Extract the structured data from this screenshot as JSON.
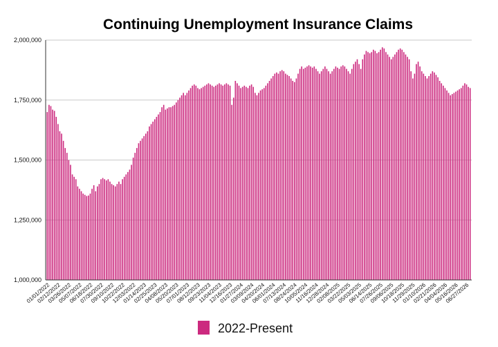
{
  "chart_data": {
    "type": "bar",
    "title": "Continuing Unemployment Insurance Claims",
    "legend": {
      "label": "2022-Present",
      "color": "#cc2a7f",
      "position": "bottom-center"
    },
    "bar_color": "#cc2a7f",
    "grid": true,
    "ylim": [
      1000000,
      2000000
    ],
    "yticks": [
      "1,000,000",
      "1,250,000",
      "1,500,000",
      "1,750,000",
      "2,000,000"
    ],
    "ytick_values": [
      1000000,
      1250000,
      1500000,
      1750000,
      2000000
    ],
    "xtick_labels": [
      "01/01/2022",
      "02/12/2022",
      "03/26/2022",
      "05/07/2022",
      "06/18/2022",
      "07/30/2022",
      "09/10/2022",
      "10/22/2022",
      "12/03/2022",
      "01/14/2023",
      "02/25/2023",
      "04/08/2023",
      "05/20/2023",
      "07/01/2023",
      "08/12/2023",
      "09/23/2023",
      "11/04/2023",
      "12/16/2023",
      "01/27/2024",
      "03/09/2024",
      "04/20/2024",
      "06/01/2024",
      "07/13/2024",
      "08/24/2024",
      "10/05/2024",
      "11/16/2024",
      "12/28/2024",
      "02/08/2025",
      "03/22/2025",
      "05/03/2025",
      "06/14/2025",
      "07/26/2025",
      "09/06/2025",
      "10/18/2025",
      "11/29/2025",
      "01/10/2026",
      "02/21/2026",
      "04/04/2026",
      "05/16/2026",
      "06/27/2026"
    ],
    "values": [
      1700000,
      1730000,
      1725000,
      1710000,
      1705000,
      1680000,
      1650000,
      1620000,
      1610000,
      1580000,
      1550000,
      1530000,
      1500000,
      1480000,
      1440000,
      1430000,
      1420000,
      1390000,
      1380000,
      1370000,
      1360000,
      1355000,
      1350000,
      1352000,
      1360000,
      1380000,
      1395000,
      1370000,
      1390000,
      1400000,
      1420000,
      1425000,
      1420000,
      1415000,
      1420000,
      1410000,
      1400000,
      1395000,
      1390000,
      1400000,
      1410000,
      1400000,
      1420000,
      1430000,
      1440000,
      1450000,
      1460000,
      1480000,
      1510000,
      1530000,
      1550000,
      1570000,
      1580000,
      1590000,
      1600000,
      1610000,
      1620000,
      1640000,
      1650000,
      1660000,
      1670000,
      1680000,
      1690000,
      1700000,
      1720000,
      1730000,
      1710000,
      1715000,
      1720000,
      1720000,
      1725000,
      1730000,
      1740000,
      1750000,
      1760000,
      1770000,
      1780000,
      1770000,
      1780000,
      1790000,
      1800000,
      1810000,
      1815000,
      1810000,
      1800000,
      1795000,
      1800000,
      1805000,
      1810000,
      1815000,
      1820000,
      1815000,
      1810000,
      1805000,
      1810000,
      1815000,
      1820000,
      1815000,
      1810000,
      1815000,
      1820000,
      1815000,
      1810000,
      1730000,
      1760000,
      1830000,
      1820000,
      1810000,
      1800000,
      1805000,
      1810000,
      1805000,
      1800000,
      1810000,
      1815000,
      1805000,
      1780000,
      1770000,
      1780000,
      1790000,
      1795000,
      1800000,
      1810000,
      1820000,
      1830000,
      1840000,
      1850000,
      1860000,
      1865000,
      1860000,
      1870000,
      1875000,
      1870000,
      1860000,
      1855000,
      1850000,
      1840000,
      1830000,
      1825000,
      1840000,
      1860000,
      1880000,
      1890000,
      1880000,
      1885000,
      1890000,
      1895000,
      1890000,
      1885000,
      1890000,
      1880000,
      1870000,
      1860000,
      1870000,
      1880000,
      1890000,
      1880000,
      1870000,
      1860000,
      1870000,
      1880000,
      1890000,
      1885000,
      1880000,
      1890000,
      1895000,
      1890000,
      1880000,
      1870000,
      1860000,
      1880000,
      1900000,
      1910000,
      1920000,
      1900000,
      1880000,
      1920000,
      1940000,
      1955000,
      1950000,
      1945000,
      1950000,
      1960000,
      1955000,
      1945000,
      1950000,
      1960000,
      1970000,
      1965000,
      1950000,
      1940000,
      1930000,
      1920000,
      1930000,
      1940000,
      1950000,
      1960000,
      1965000,
      1960000,
      1950000,
      1940000,
      1930000,
      1920000,
      1870000,
      1840000,
      1860000,
      1900000,
      1910000,
      1890000,
      1870000,
      1860000,
      1850000,
      1840000,
      1850000,
      1860000,
      1870000,
      1865000,
      1855000,
      1845000,
      1830000,
      1820000,
      1810000,
      1800000,
      1790000,
      1780000,
      1770000,
      1775000,
      1780000,
      1785000,
      1790000,
      1795000,
      1800000,
      1810000,
      1820000,
      1815000,
      1805000,
      1800000
    ]
  }
}
